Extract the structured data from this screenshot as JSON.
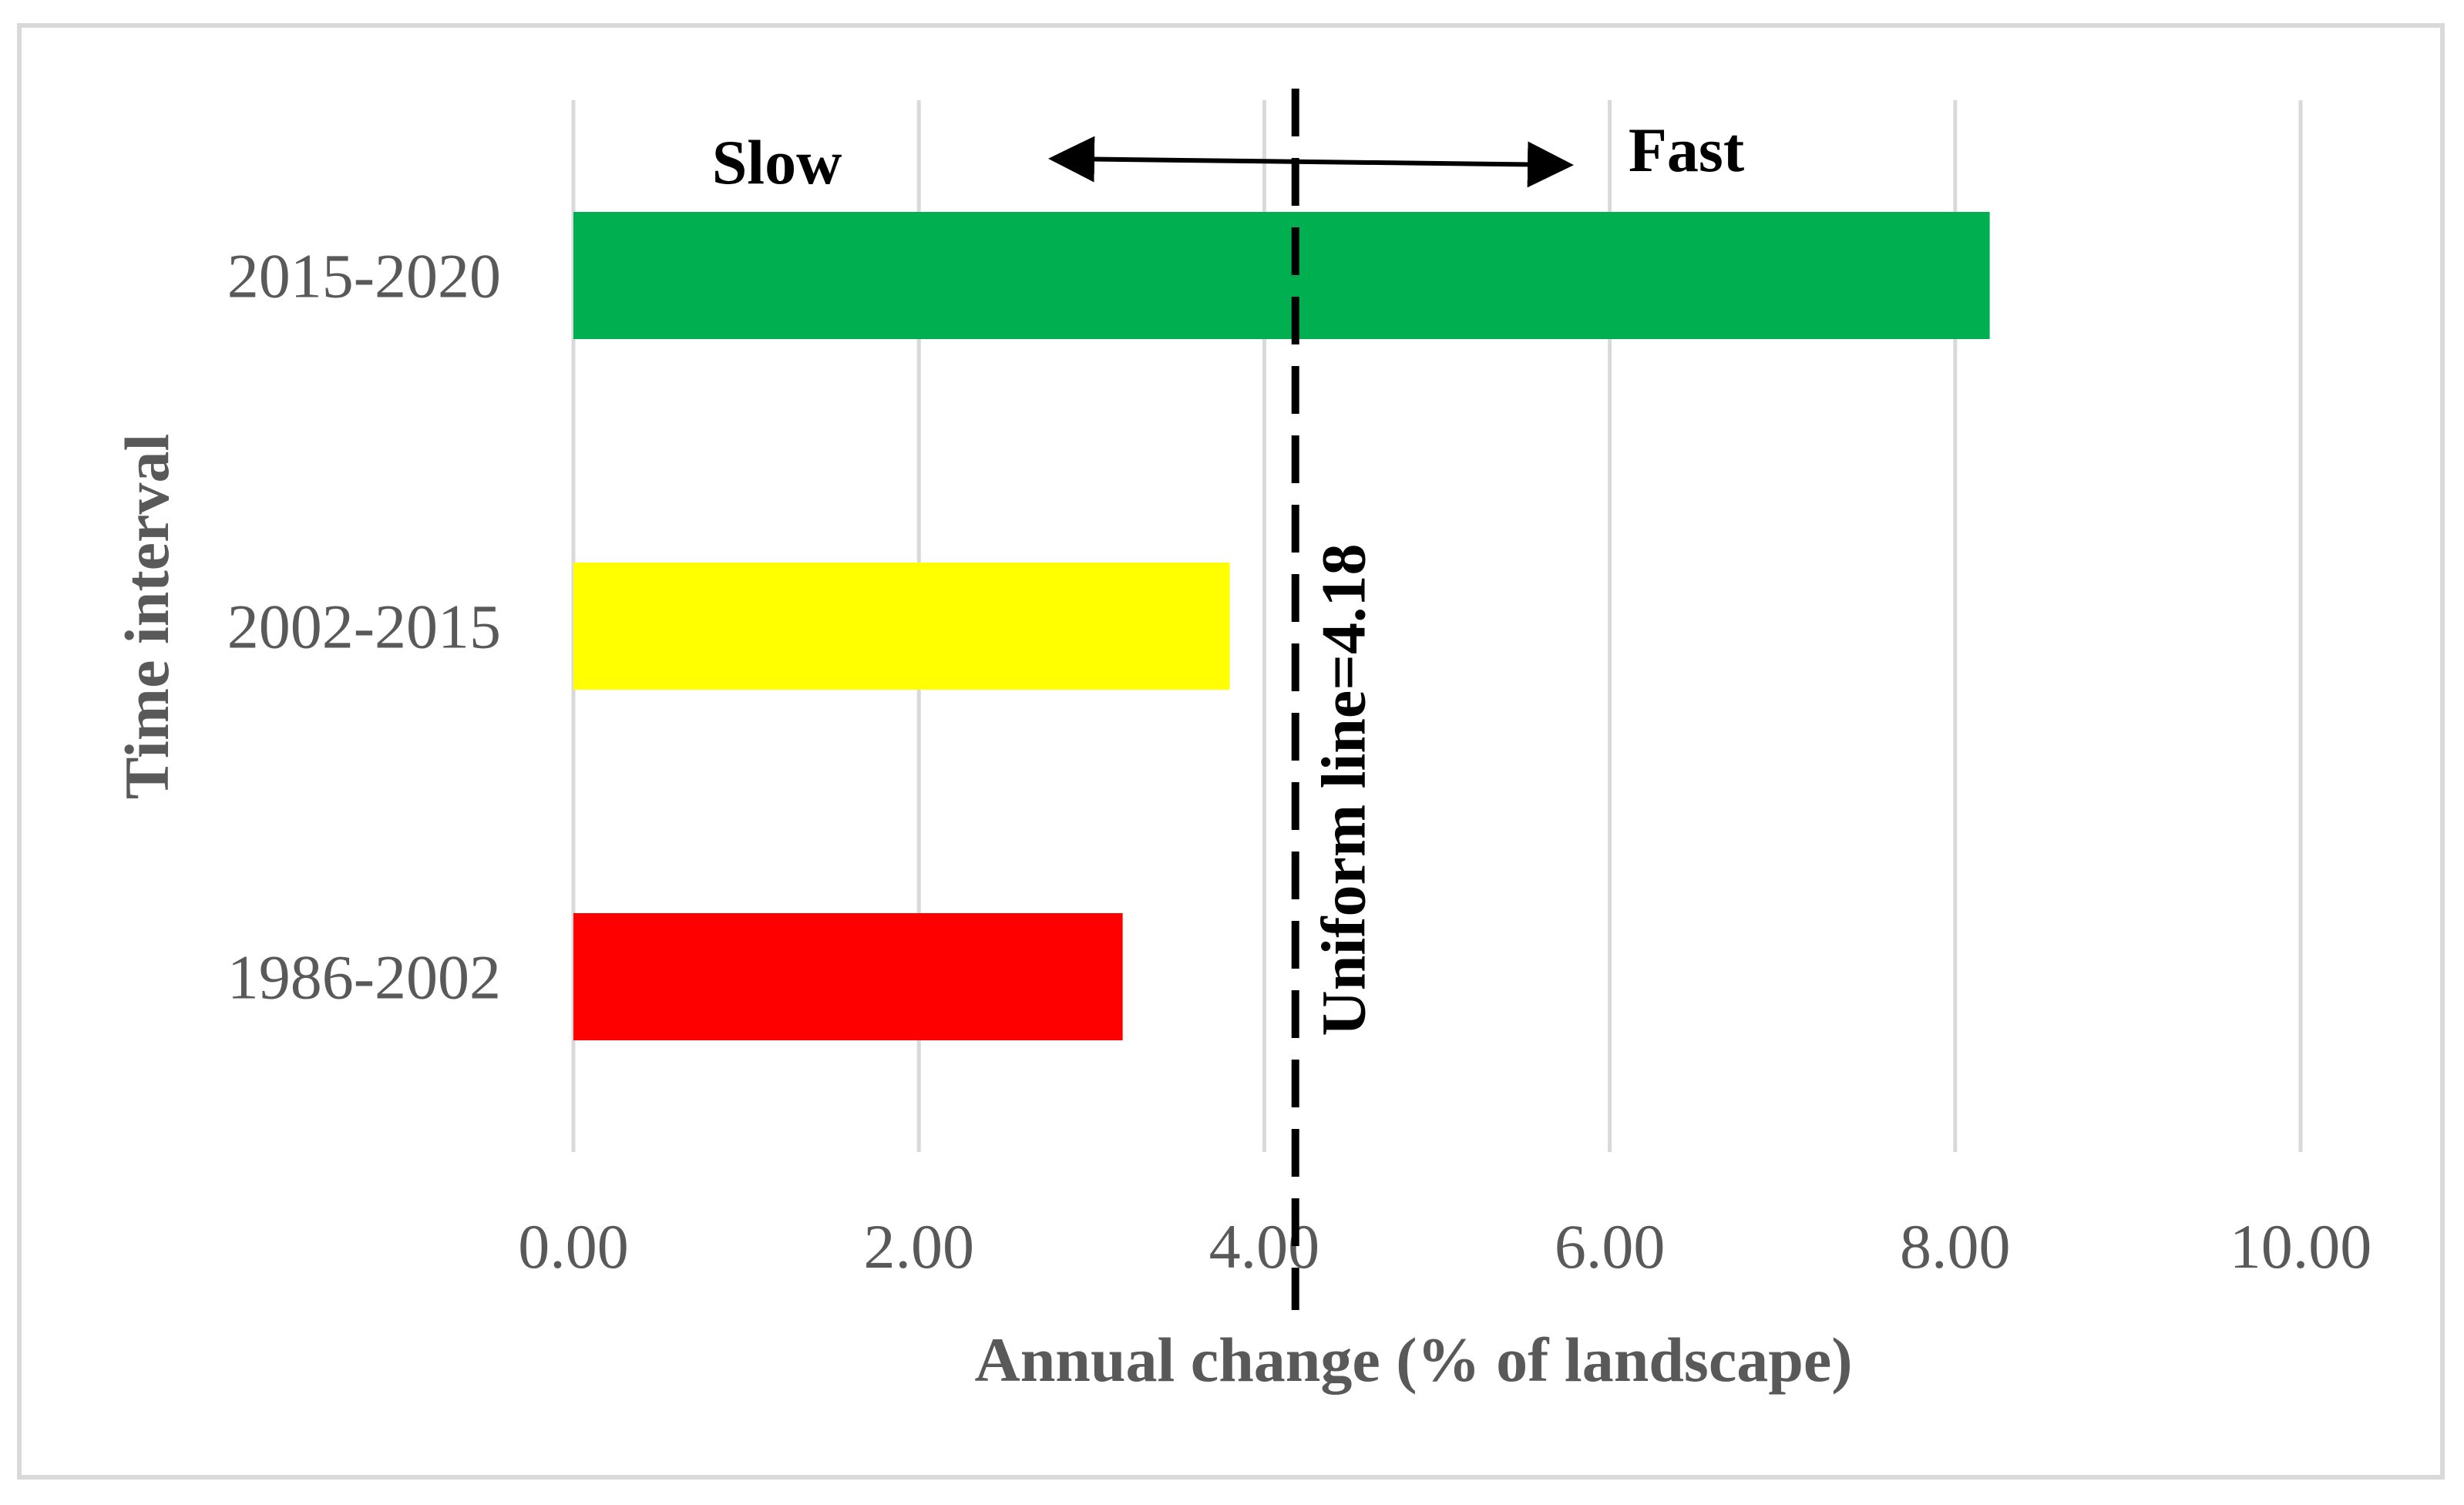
{
  "chart_data": {
    "type": "bar",
    "orientation": "horizontal",
    "categories": [
      "2015-2020",
      "2002-2015",
      "1986-2002"
    ],
    "values": [
      8.2,
      3.8,
      3.18
    ],
    "colors": [
      "#00b050",
      "#ffff00",
      "#ff0000"
    ],
    "title": "",
    "xlabel": "Annual change (% of landscape)",
    "ylabel": "Time interval",
    "xlim": [
      0,
      10
    ],
    "xticks": [
      0,
      2,
      4,
      6,
      8,
      10
    ],
    "xtick_labels": [
      "0.00",
      "2.00",
      "4.00",
      "6.00",
      "8.00",
      "10.00"
    ],
    "grid": "vertical",
    "uniform_line": {
      "value": 4.18,
      "label": "Uniform line=4.18",
      "color": "#000000",
      "style": "dashed"
    },
    "annotations": {
      "slow_label": "Slow",
      "fast_label": "Fast"
    }
  }
}
